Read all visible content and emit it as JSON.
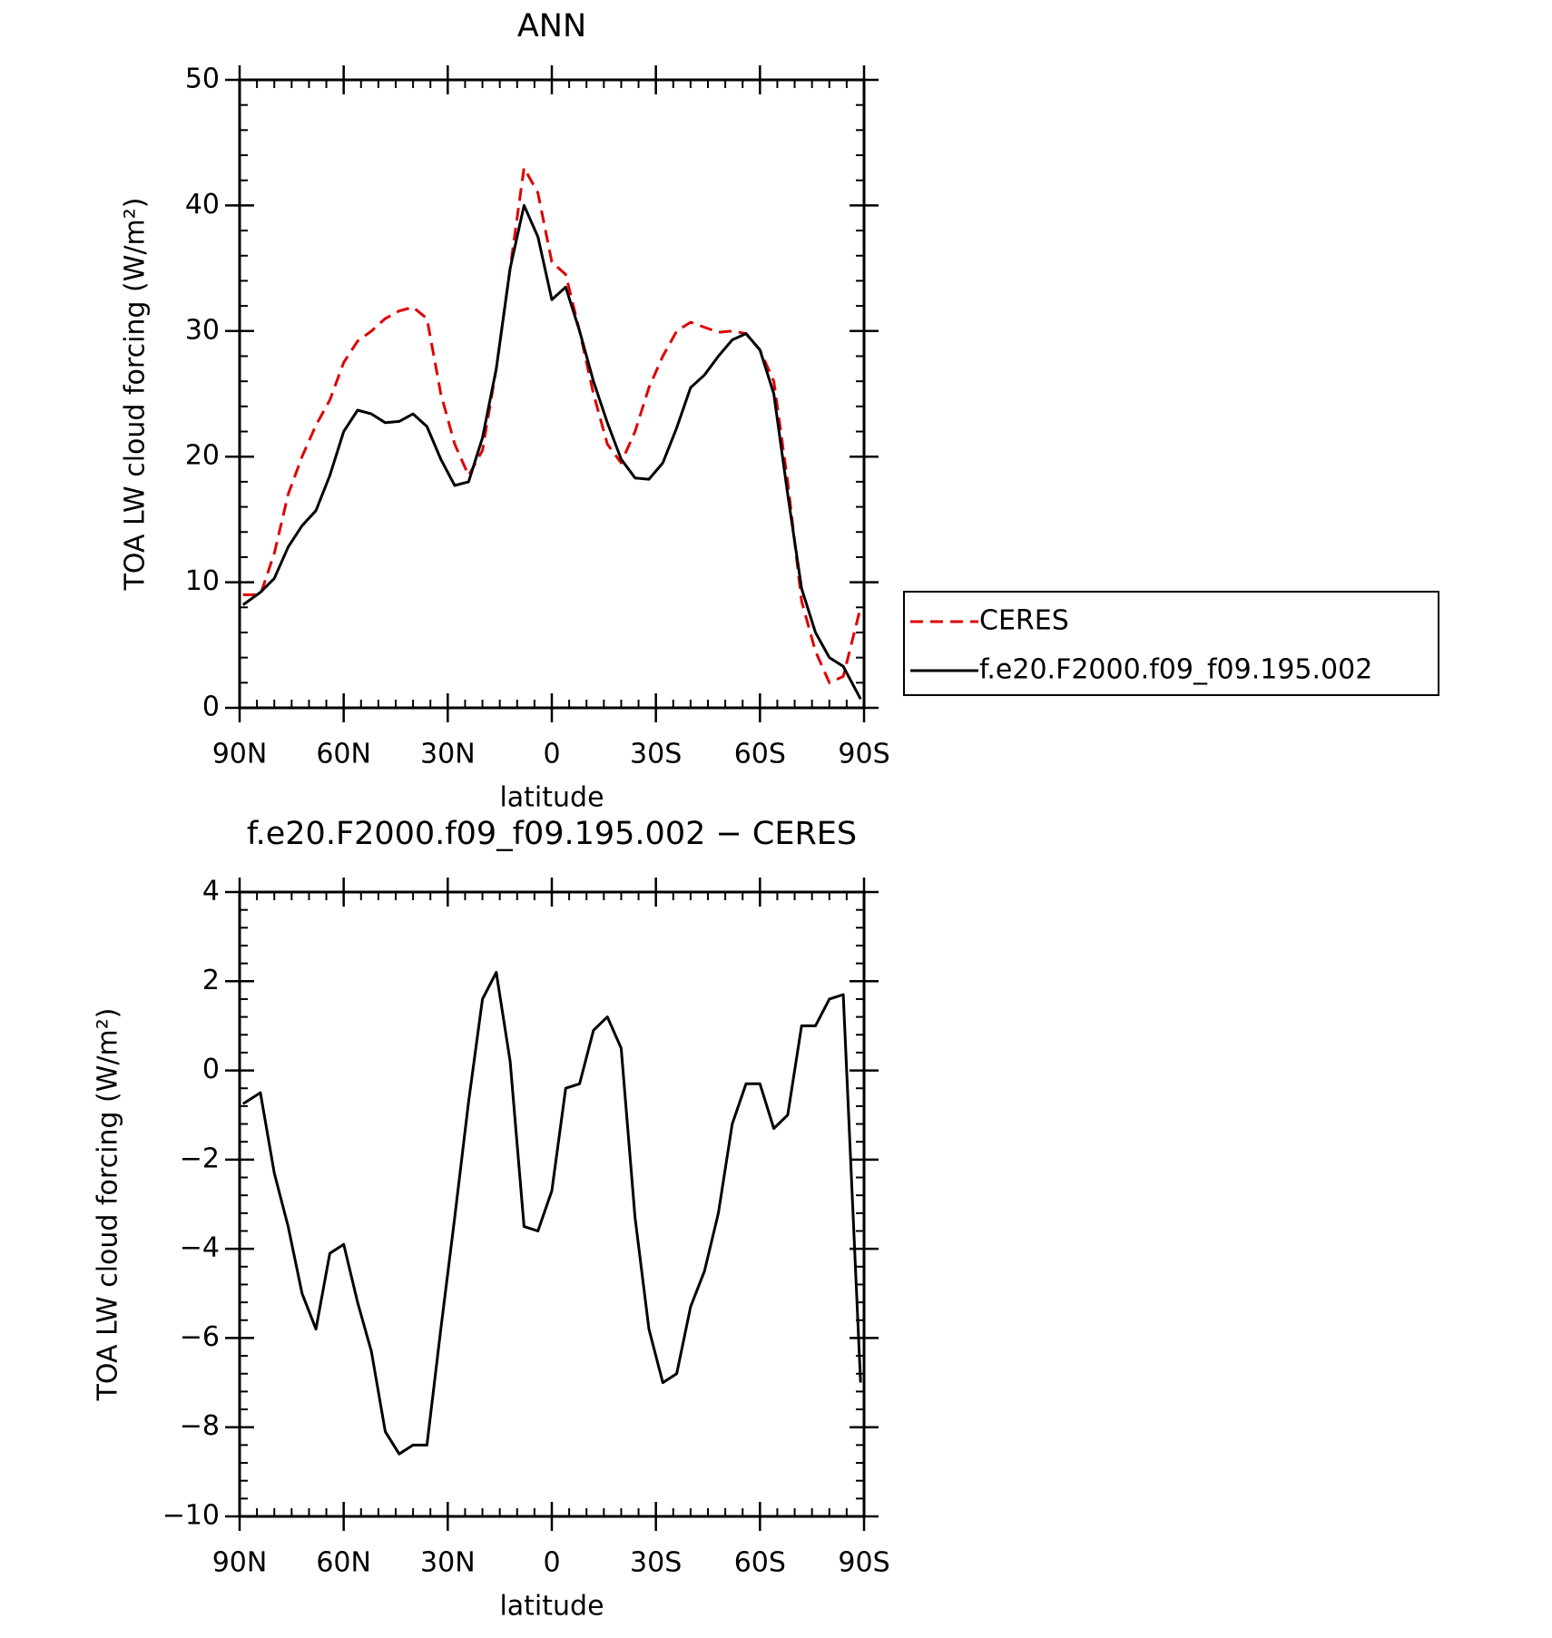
{
  "chart_data": [
    {
      "type": "line",
      "title": "ANN",
      "xlabel": "latitude",
      "ylabel": "TOA LW cloud forcing (W/m²)",
      "x": [
        89,
        84,
        80,
        76,
        72,
        68,
        64,
        60,
        56,
        52,
        48,
        44,
        40,
        36,
        32,
        28,
        24,
        20,
        16,
        12,
        8,
        4,
        0,
        -4,
        -8,
        -12,
        -16,
        -20,
        -24,
        -28,
        -32,
        -36,
        -40,
        -44,
        -48,
        -52,
        -56,
        -60,
        -64,
        -68,
        -72,
        -76,
        -80,
        -84,
        -89
      ],
      "series": [
        {
          "name": "CERES",
          "color": "#e00000",
          "dash": true,
          "values": [
            9,
            9.0,
            12.3,
            17,
            20,
            22.5,
            24.5,
            27.5,
            29.2,
            30,
            31,
            31.6,
            31.9,
            31,
            25,
            21,
            18.5,
            20.5,
            27,
            35,
            43,
            41,
            35.5,
            34.5,
            30,
            25,
            21,
            19.5,
            22,
            25.5,
            28,
            30,
            30.7,
            30.3,
            29.9,
            30,
            29.8,
            28.5,
            26,
            18,
            8.5,
            4.5,
            2,
            2.5,
            8
          ]
        },
        {
          "name": "f.e20.F2000.f09_f09.195.002",
          "color": "#000000",
          "dash": false,
          "values": [
            8.2,
            9.2,
            10.3,
            12.8,
            14.5,
            15.7,
            18.5,
            22,
            23.7,
            23.4,
            22.7,
            22.8,
            23.4,
            22.4,
            19.8,
            17.7,
            18,
            21.5,
            27,
            35,
            40,
            37.5,
            32.5,
            33.5,
            30,
            26,
            22.7,
            19.8,
            18.3,
            18.2,
            19.5,
            22.3,
            25.5,
            26.5,
            28,
            29.3,
            29.8,
            28.5,
            25,
            17,
            9.5,
            6,
            4,
            3.3,
            0.7
          ]
        }
      ],
      "xlim": [
        90,
        -90
      ],
      "xticks": [
        {
          "value": 90,
          "label": "90N"
        },
        {
          "value": 60,
          "label": "60N"
        },
        {
          "value": 30,
          "label": "30N"
        },
        0,
        {
          "value": -30,
          "label": "30S"
        },
        {
          "value": -60,
          "label": "60S"
        },
        {
          "value": -90,
          "label": "90S"
        }
      ],
      "ylim": [
        0,
        50
      ],
      "yticks": [
        0,
        10,
        20,
        30,
        40,
        50
      ],
      "legend": "right",
      "grid": false
    },
    {
      "type": "line",
      "title": "f.e20.F2000.f09_f09.195.002 − CERES",
      "xlabel": "latitude",
      "ylabel": "TOA LW cloud forcing (W/m²)",
      "x": [
        89,
        84,
        80,
        76,
        72,
        68,
        64,
        60,
        56,
        52,
        48,
        44,
        40,
        36,
        32,
        28,
        24,
        20,
        16,
        12,
        8,
        4,
        0,
        -4,
        -8,
        -12,
        -16,
        -20,
        -24,
        -28,
        -32,
        -36,
        -40,
        -44,
        -48,
        -52,
        -56,
        -60,
        -64,
        -68,
        -72,
        -76,
        -80,
        -84,
        -89
      ],
      "series": [
        {
          "color": "#000000",
          "dash": false,
          "values": [
            -0.75,
            -0.5,
            -2.3,
            -3.5,
            -5.0,
            -5.8,
            -4.1,
            -3.9,
            -5.2,
            -6.3,
            -8.1,
            -8.6,
            -8.4,
            -8.4,
            -5.8,
            -3.3,
            -0.7,
            1.6,
            2.2,
            0.2,
            -3.5,
            -3.6,
            -2.7,
            -0.4,
            -0.3,
            0.9,
            1.2,
            0.5,
            -3.3,
            -5.8,
            -7.0,
            -6.8,
            -5.3,
            -4.5,
            -3.2,
            -1.2,
            -0.3,
            -0.3,
            -1.3,
            -1.0,
            1.0,
            1.0,
            1.6,
            1.7,
            -7.0
          ]
        }
      ],
      "xlim": [
        90,
        -90
      ],
      "xticks": [
        {
          "value": 90,
          "label": "90N"
        },
        {
          "value": 60,
          "label": "60N"
        },
        {
          "value": 30,
          "label": "30N"
        },
        0,
        {
          "value": -30,
          "label": "30S"
        },
        {
          "value": -60,
          "label": "60S"
        },
        {
          "value": -90,
          "label": "90S"
        }
      ],
      "ylim": [
        -10,
        4
      ],
      "yticks": [
        {
          "value": -10,
          "label": "−10"
        },
        {
          "value": -8,
          "label": "−8"
        },
        {
          "value": -6,
          "label": "−6"
        },
        {
          "value": -4,
          "label": "−4"
        },
        {
          "value": -2,
          "label": "−2"
        },
        0,
        2,
        4
      ],
      "grid": false
    }
  ]
}
